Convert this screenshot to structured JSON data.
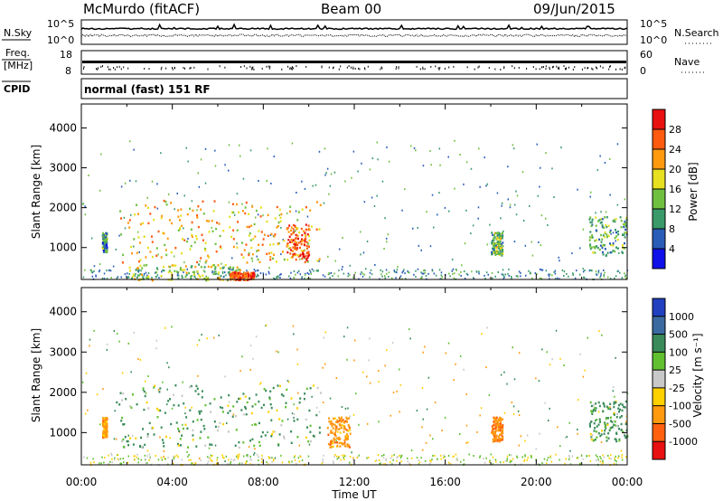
{
  "header": {
    "station": "McMurdo (fitACF)",
    "beam": "Beam 00",
    "date": "09/Jun/2015"
  },
  "strips": {
    "nsky": {
      "label": "N.Sky",
      "ticks": [
        "10^5",
        "10^0"
      ],
      "right_label": "N.Search",
      "right_ticks": [
        "10^5",
        "10^0"
      ]
    },
    "freq": {
      "label_top": "Freq.",
      "label_bottom": "[MHz]",
      "ticks": [
        "18",
        "8"
      ],
      "right_label": "Nave",
      "right_ticks": [
        "60",
        "0"
      ]
    },
    "cpid": {
      "label": "CPID",
      "text": "normal (fast) 151 RF"
    }
  },
  "chart_data": [
    {
      "type": "heatmap",
      "panel": "power",
      "xlabel": "",
      "ylabel": "Slant Range [km]",
      "ylim": [
        200,
        4600
      ],
      "yticks": [
        1000,
        2000,
        3000,
        4000
      ],
      "xlim_hours": [
        0,
        24
      ],
      "colorbar": {
        "label": "Power [dB]",
        "ticks": [
          4,
          8,
          12,
          16,
          20,
          24,
          28
        ],
        "range": [
          0,
          32
        ],
        "colors": [
          "#1010e8",
          "#2a5db8",
          "#3a9a6a",
          "#70c040",
          "#e6e020",
          "#ff9a10",
          "#ff5a10",
          "#e81010"
        ]
      },
      "scatter_regions": [
        {
          "t_start": 0.9,
          "t_end": 1.1,
          "r_low": 900,
          "r_high": 1400,
          "dominant_db": 10
        },
        {
          "t_start": 1.5,
          "t_end": 10.5,
          "r_low": 650,
          "r_high": 2200,
          "dominant_db": 20
        },
        {
          "t_start": 2.0,
          "t_end": 7.0,
          "r_low": 200,
          "r_high": 600,
          "dominant_db": 16
        },
        {
          "t_start": 6.5,
          "t_end": 7.6,
          "r_low": 200,
          "r_high": 400,
          "dominant_db": 28
        },
        {
          "t_start": 9.0,
          "t_end": 10.0,
          "r_low": 700,
          "r_high": 1600,
          "dominant_db": 26
        },
        {
          "t_start": 18.0,
          "t_end": 18.5,
          "r_low": 800,
          "r_high": 1400,
          "dominant_db": 14
        },
        {
          "t_start": 22.3,
          "t_end": 24.0,
          "r_low": 800,
          "r_high": 1800,
          "dominant_db": 12
        }
      ]
    },
    {
      "type": "heatmap",
      "panel": "velocity",
      "xlabel": "Time UT",
      "ylabel": "Slant Range [km]",
      "ylim": [
        200,
        4600
      ],
      "yticks": [
        1000,
        2000,
        3000,
        4000
      ],
      "xticks": [
        "00:00",
        "04:00",
        "08:00",
        "12:00",
        "16:00",
        "20:00",
        "00:00"
      ],
      "colorbar": {
        "label": "Velocity [m s⁻¹]",
        "ticks": [
          1000,
          500,
          100,
          25,
          -25,
          -100,
          -500,
          -1000
        ],
        "colors": [
          "#2040c0",
          "#3a6aa0",
          "#3a8a5a",
          "#60c030",
          "#c8c8c8",
          "#ffd000",
          "#ff9a10",
          "#ff6010",
          "#e81010"
        ]
      },
      "scatter_regions": [
        {
          "t_start": 0.9,
          "t_end": 1.1,
          "r_low": 900,
          "r_high": 1400,
          "dominant_velocity": -300
        },
        {
          "t_start": 1.5,
          "t_end": 10.5,
          "r_low": 650,
          "r_high": 2200,
          "dominant_velocity": 150
        },
        {
          "t_start": 10.8,
          "t_end": 11.8,
          "r_low": 650,
          "r_high": 1400,
          "dominant_velocity": -300
        },
        {
          "t_start": 18.0,
          "t_end": 18.5,
          "r_low": 800,
          "r_high": 1400,
          "dominant_velocity": -400
        },
        {
          "t_start": 22.3,
          "t_end": 24.0,
          "r_low": 800,
          "r_high": 1800,
          "dominant_velocity": 200
        }
      ]
    }
  ]
}
